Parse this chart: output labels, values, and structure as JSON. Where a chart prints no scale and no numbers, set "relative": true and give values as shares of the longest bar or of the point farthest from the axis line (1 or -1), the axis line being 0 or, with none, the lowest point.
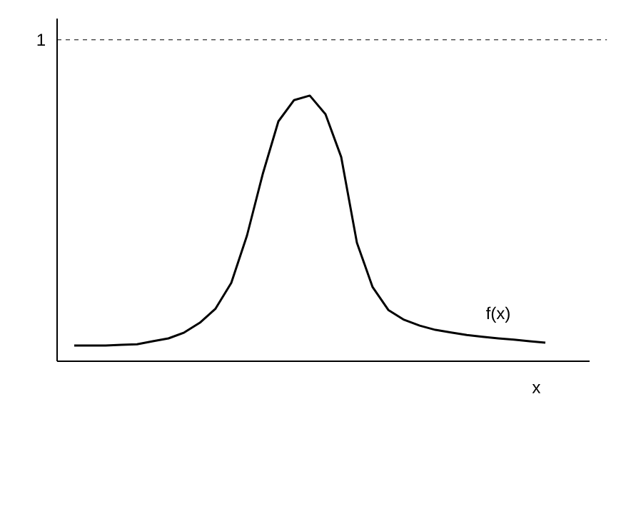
{
  "chart_data": {
    "type": "line",
    "xlabel": "x",
    "relative": true,
    "categories": [
      null,
      null,
      null,
      null,
      null,
      null,
      null,
      null,
      null,
      null,
      null,
      null,
      null,
      null,
      null,
      null,
      null,
      null,
      null,
      null,
      null,
      null,
      null,
      null,
      null,
      null,
      null,
      null,
      null,
      null,
      null
    ],
    "series": [
      {
        "name": "f(x)",
        "color": "#000000",
        "values": [
          0.059,
          0.059,
          0.059,
          0.062,
          0.064,
          0.075,
          0.086,
          0.108,
          0.145,
          0.198,
          0.295,
          0.473,
          0.704,
          0.903,
          0.983,
          1,
          0.93,
          0.769,
          0.446,
          0.279,
          0.193,
          0.156,
          0.134,
          0.118,
          0.108,
          0.099,
          0.092,
          0.086,
          0.081,
          0.075,
          0.07
        ]
      }
    ],
    "ref_lines": [
      {
        "axis": "y",
        "value": 1.21,
        "label": "1",
        "color": "#000000",
        "line_style": "dashed"
      }
    ],
    "legend": false,
    "marker": "none",
    "line_style": "solid"
  }
}
